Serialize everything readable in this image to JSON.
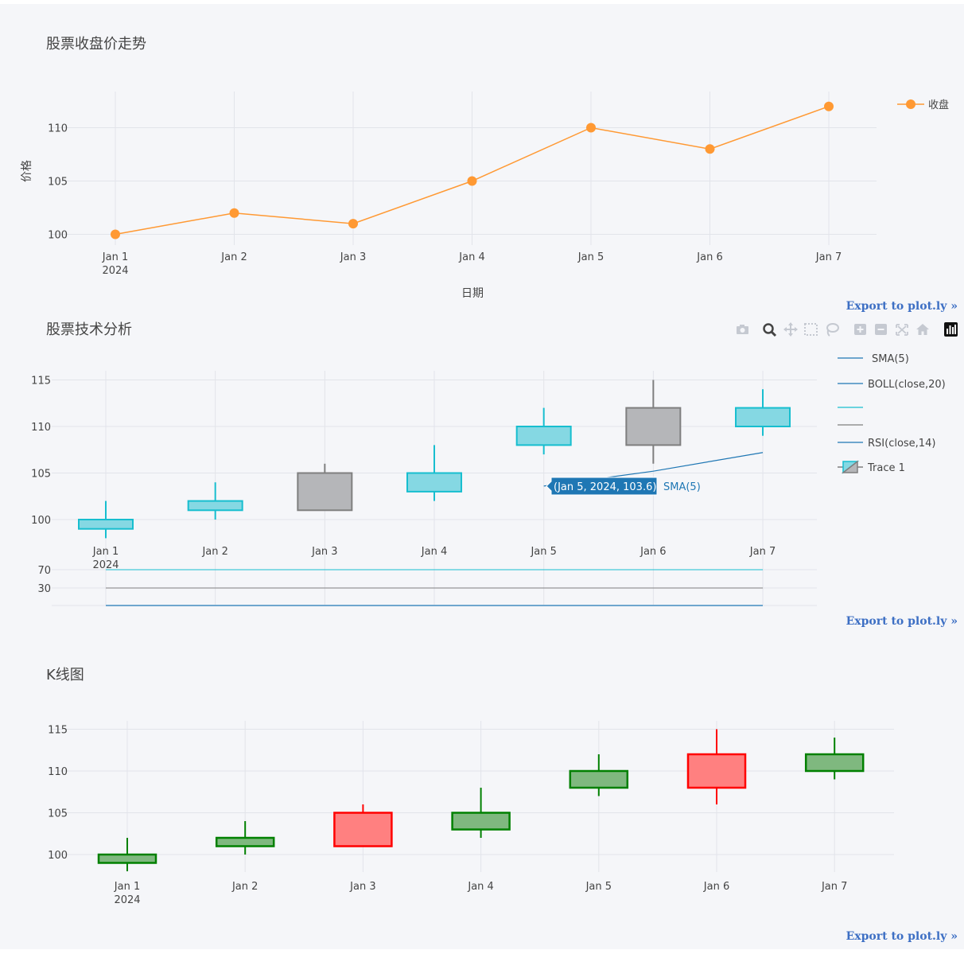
{
  "chart_data": [
    {
      "type": "line",
      "title": "股票收盘价走势",
      "xlabel": "日期",
      "ylabel": "价格",
      "x": [
        "Jan 1\n2024",
        "Jan 2",
        "Jan 3",
        "Jan 4",
        "Jan 5",
        "Jan 6",
        "Jan 7"
      ],
      "series": [
        {
          "name": "收盘",
          "values": [
            100,
            102,
            101,
            105,
            110,
            108,
            112
          ],
          "color": "#ff9933"
        }
      ],
      "ylim": [
        99.5,
        113.5
      ],
      "yticks": [
        100,
        105,
        110
      ],
      "grid": true,
      "legend": "top-right"
    },
    {
      "type": "candlestick",
      "title": "股票技术分析",
      "x": [
        "Jan 1\n2024",
        "Jan 2",
        "Jan 3",
        "Jan 4",
        "Jan 5",
        "Jan 6",
        "Jan 7"
      ],
      "ohlc": [
        {
          "open": 99,
          "high": 102,
          "low": 98,
          "close": 100
        },
        {
          "open": 101,
          "high": 104,
          "low": 100,
          "close": 102
        },
        {
          "open": 105,
          "high": 106,
          "low": 101,
          "close": 101
        },
        {
          "open": 103,
          "high": 108,
          "low": 102,
          "close": 105
        },
        {
          "open": 108,
          "high": 112,
          "low": 107,
          "close": 110
        },
        {
          "open": 112,
          "high": 115,
          "low": 106,
          "close": 108
        },
        {
          "open": 110,
          "high": 114,
          "low": 109,
          "close": 112
        }
      ],
      "sma5": [
        null,
        null,
        null,
        null,
        103.6,
        105.2,
        107.2
      ],
      "ylim": [
        97.8,
        116
      ],
      "yticks": [
        100,
        105,
        110,
        115
      ],
      "sub_yticks": [
        70,
        30
      ],
      "rsi_levels": [
        70,
        30
      ],
      "legend": [
        "SMA(5)",
        "BOLL(close,20)",
        "",
        "",
        "RSI(close,14)",
        "Trace 1"
      ],
      "hover": {
        "label": "(Jan 5, 2024, 103.6)",
        "trace": "SMA(5)"
      },
      "colors": {
        "increasing": "#17becf",
        "decreasing": "#7f7f7f",
        "sma": "#1f77b4",
        "rsi70": "#17becf",
        "rsi30": "#7f7f7f"
      }
    },
    {
      "type": "candlestick",
      "title": "K线图",
      "x": [
        "Jan 1\n2024",
        "Jan 2",
        "Jan 3",
        "Jan 4",
        "Jan 5",
        "Jan 6",
        "Jan 7"
      ],
      "ohlc": [
        {
          "open": 99,
          "high": 102,
          "low": 98,
          "close": 100
        },
        {
          "open": 101,
          "high": 104,
          "low": 100,
          "close": 102
        },
        {
          "open": 105,
          "high": 106,
          "low": 101,
          "close": 101
        },
        {
          "open": 103,
          "high": 108,
          "low": 102,
          "close": 105
        },
        {
          "open": 108,
          "high": 112,
          "low": 107,
          "close": 110
        },
        {
          "open": 112,
          "high": 115,
          "low": 106,
          "close": 108
        },
        {
          "open": 110,
          "high": 114,
          "low": 109,
          "close": 112
        }
      ],
      "ylim": [
        97.8,
        116
      ],
      "yticks": [
        100,
        105,
        110,
        115
      ],
      "colors": {
        "increasing": "#008000",
        "decreasing": "#ff0000"
      }
    }
  ],
  "export_label": "Export to plot.ly »",
  "toolbar": [
    "camera-icon",
    "zoom-icon",
    "pan-icon",
    "box-select-icon",
    "lasso-icon",
    "zoom-in-icon",
    "zoom-out-icon",
    "autoscale-icon",
    "reset-axes-icon",
    "plotly-logo-icon"
  ]
}
